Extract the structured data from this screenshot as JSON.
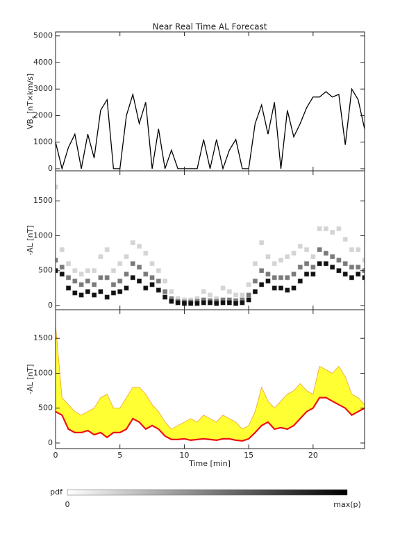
{
  "chart_data": [
    {
      "type": "line",
      "title": "Near Real Time AL Forecast",
      "ylabel": [
        "VB",
        "s",
        "[nT×km/s]"
      ],
      "x": [
        0,
        0.5,
        1,
        1.5,
        2,
        2.5,
        3,
        3.5,
        4,
        4.5,
        5,
        5.5,
        6,
        6.5,
        7,
        7.5,
        8,
        8.5,
        9,
        9.5,
        10,
        10.5,
        11,
        11.5,
        12,
        12.5,
        13,
        13.5,
        14,
        14.5,
        15,
        15.5,
        16,
        16.5,
        17,
        17.5,
        18,
        18.5,
        19,
        19.5,
        20,
        20.5,
        21,
        21.5,
        22,
        22.5,
        23,
        23.5,
        24
      ],
      "series": [
        {
          "color": "#000000",
          "values": [
            1000,
            0,
            800,
            1300,
            0,
            1300,
            400,
            2200,
            2600,
            0,
            0,
            2000,
            2800,
            1700,
            2500,
            0,
            1500,
            0,
            700,
            0,
            0,
            0,
            0,
            1100,
            0,
            1100,
            0,
            700,
            1100,
            0,
            0,
            1700,
            2400,
            1300,
            2500,
            0,
            2200,
            1200,
            1700,
            2300,
            2700,
            2700,
            2900,
            2700,
            2800,
            900,
            3000,
            2600,
            1500
          ]
        }
      ],
      "xlim": [
        0,
        24
      ],
      "ylim": [
        -80,
        5150
      ],
      "yticks": [
        0,
        1000,
        2000,
        3000,
        4000,
        5000
      ]
    },
    {
      "type": "heatmap",
      "ylabel": "-AL [nT]",
      "x": [
        0,
        0.5,
        1,
        1.5,
        2,
        2.5,
        3,
        3.5,
        4,
        4.5,
        5,
        5.5,
        6,
        6.5,
        7,
        7.5,
        8,
        8.5,
        9,
        9.5,
        10,
        10.5,
        11,
        11.5,
        12,
        12.5,
        13,
        13.5,
        14,
        14.5,
        15,
        15.5,
        16,
        16.5,
        17,
        17.5,
        18,
        18.5,
        19,
        19.5,
        20,
        20.5,
        21,
        21.5,
        22,
        22.5,
        23,
        23.5,
        24
      ],
      "series": [
        {
          "color": "#d4d4d4",
          "values": [
            1700,
            800,
            600,
            500,
            450,
            500,
            500,
            700,
            800,
            500,
            600,
            700,
            900,
            850,
            750,
            600,
            500,
            350,
            200,
            100,
            80,
            80,
            100,
            200,
            150,
            100,
            250,
            200,
            150,
            150,
            300,
            600,
            900,
            700,
            600,
            650,
            700,
            750,
            850,
            800,
            700,
            1100,
            1100,
            1050,
            1100,
            950,
            800,
            800,
            650
          ]
        },
        {
          "color": "#7a7a7a",
          "values": [
            650,
            550,
            400,
            350,
            300,
            350,
            300,
            400,
            400,
            300,
            350,
            450,
            600,
            550,
            450,
            400,
            350,
            200,
            100,
            60,
            50,
            50,
            60,
            80,
            70,
            60,
            80,
            80,
            70,
            80,
            150,
            350,
            500,
            450,
            400,
            400,
            400,
            450,
            550,
            600,
            550,
            800,
            750,
            700,
            650,
            600,
            550,
            550,
            500
          ]
        },
        {
          "color": "#111111",
          "values": [
            500,
            450,
            250,
            180,
            150,
            200,
            150,
            200,
            120,
            180,
            200,
            250,
            400,
            350,
            250,
            300,
            220,
            120,
            60,
            40,
            30,
            30,
            30,
            40,
            40,
            30,
            40,
            40,
            30,
            40,
            80,
            200,
            300,
            350,
            250,
            250,
            220,
            250,
            350,
            450,
            450,
            600,
            600,
            550,
            500,
            450,
            400,
            450,
            400
          ]
        }
      ],
      "xlim": [
        0,
        24
      ],
      "ylim": [
        -60,
        1930
      ],
      "yticks": [
        0,
        500,
        1000,
        1500
      ],
      "colorbar": {
        "label": "pdf",
        "min_label": "0",
        "max_label": "max(p)"
      }
    },
    {
      "type": "band",
      "ylabel": "-AL [nT]",
      "xlabel": "Time [min]",
      "x": [
        0,
        0.5,
        1,
        1.5,
        2,
        2.5,
        3,
        3.5,
        4,
        4.5,
        5,
        5.5,
        6,
        6.5,
        7,
        7.5,
        8,
        8.5,
        9,
        9.5,
        10,
        10.5,
        11,
        11.5,
        12,
        12.5,
        13,
        13.5,
        14,
        14.5,
        15,
        15.5,
        16,
        16.5,
        17,
        17.5,
        18,
        18.5,
        19,
        19.5,
        20,
        20.5,
        21,
        21.5,
        22,
        22.5,
        23,
        23.5,
        24
      ],
      "series": [
        {
          "color": "#ffff33",
          "edge_color": "#f0a030",
          "values": [
            1700,
            650,
            550,
            450,
            400,
            450,
            500,
            650,
            700,
            500,
            500,
            650,
            800,
            800,
            700,
            550,
            450,
            300,
            200,
            250,
            300,
            350,
            300,
            400,
            350,
            300,
            400,
            350,
            300,
            200,
            250,
            450,
            800,
            600,
            500,
            600,
            700,
            750,
            850,
            750,
            700,
            1100,
            1050,
            1000,
            1100,
            950,
            700,
            650,
            550
          ]
        },
        {
          "color": "#ee1111",
          "values": [
            450,
            400,
            200,
            150,
            150,
            180,
            120,
            150,
            80,
            150,
            150,
            200,
            350,
            300,
            200,
            250,
            200,
            100,
            50,
            50,
            60,
            40,
            50,
            60,
            50,
            40,
            60,
            60,
            40,
            30,
            60,
            150,
            250,
            300,
            200,
            220,
            200,
            250,
            350,
            450,
            500,
            650,
            650,
            600,
            550,
            500,
            400,
            450,
            500
          ]
        }
      ],
      "xlim": [
        0,
        24
      ],
      "xticks": [
        0,
        5,
        10,
        15,
        20
      ],
      "ylim": [
        -80,
        1910
      ],
      "yticks": [
        0,
        500,
        1000,
        1500
      ]
    }
  ]
}
